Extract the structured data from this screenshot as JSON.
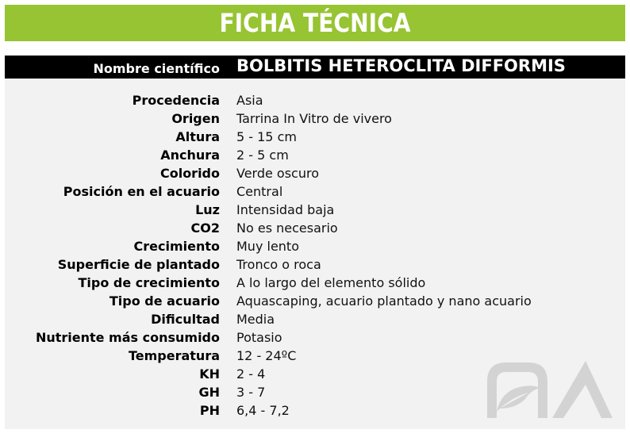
{
  "header": {
    "title": "FICHA TÉCNICA"
  },
  "name": {
    "label": "Nombre científico",
    "value": "BOLBITIS HETEROCLITA DIFFORMIS"
  },
  "specs": [
    {
      "label": "Procedencia",
      "value": "Asia"
    },
    {
      "label": "Origen",
      "value": "Tarrina In Vitro de vivero"
    },
    {
      "label": "Altura",
      "value": "5 - 15 cm"
    },
    {
      "label": "Anchura",
      "value": "2 - 5 cm"
    },
    {
      "label": "Colorido",
      "value": "Verde oscuro"
    },
    {
      "label": "Posición en el acuario",
      "value": "Central"
    },
    {
      "label": "Luz",
      "value": "Intensidad baja"
    },
    {
      "label": "CO2",
      "value": "No es necesario"
    },
    {
      "label": "Crecimiento",
      "value": "Muy lento"
    },
    {
      "label": "Superficie de plantado",
      "value": "Tronco o roca"
    },
    {
      "label": "Tipo de crecimiento",
      "value": "A lo largo del elemento sólido"
    },
    {
      "label": "Tipo de acuario",
      "value": "Aquascaping, acuario plantado y nano acuario"
    },
    {
      "label": "Dificultad",
      "value": "Media"
    },
    {
      "label": "Nutriente más consumido",
      "value": "Potasio"
    },
    {
      "label": "Temperatura",
      "value": "12 - 24ºC"
    },
    {
      "label": "KH",
      "value": "2 - 4"
    },
    {
      "label": "GH",
      "value": "3 - 7"
    },
    {
      "label": "PH",
      "value": "6,4 - 7,2"
    }
  ],
  "colors": {
    "accent": "#97c432",
    "namebar": "#000000",
    "panel": "#f2f2f2",
    "logo": "#d3d3d3"
  },
  "logo": {
    "icon": "leaf-arch-logo"
  }
}
